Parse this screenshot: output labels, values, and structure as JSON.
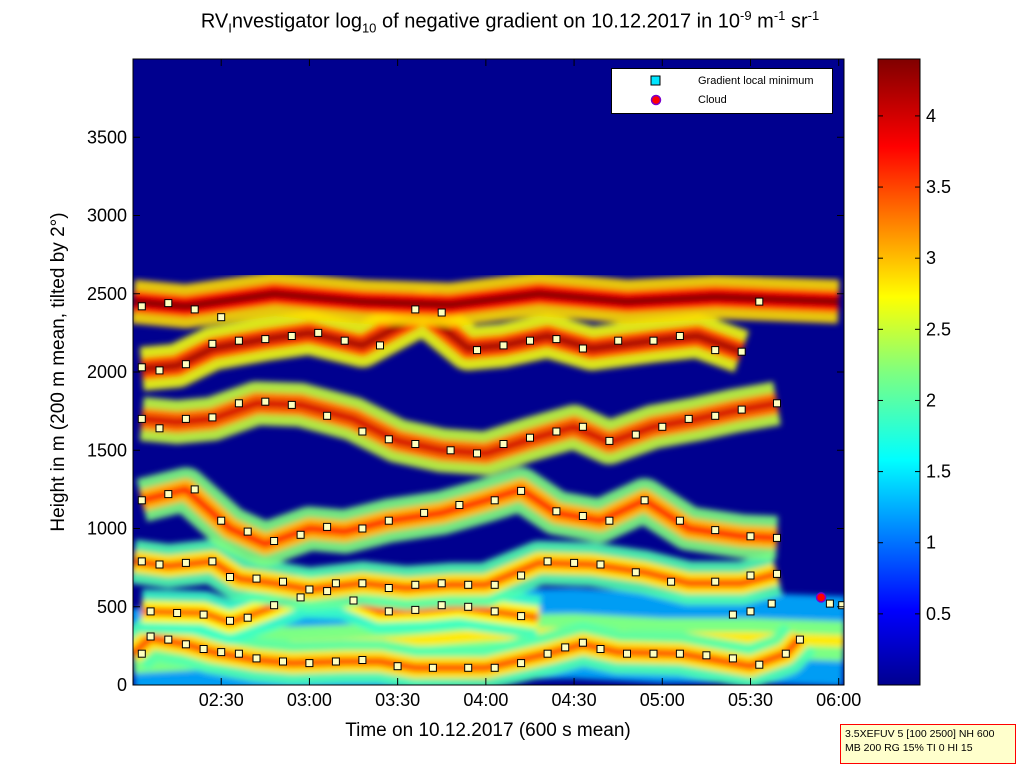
{
  "title": {
    "prefix": "RV",
    "sub1": "I",
    "mid": "nvestigator log",
    "sub2": "10",
    "after": " of negative gradient on 10.12.2017 in 10",
    "sup1": "-9",
    "unit_m": " m",
    "sup2": "-1",
    "unit_sr": " sr",
    "sup3": "-1"
  },
  "legend": {
    "items": [
      {
        "label": "Gradient local minimum",
        "marker": "square",
        "color": "#00e5ff"
      },
      {
        "label": "Cloud",
        "marker": "circle",
        "color": "#ff0000"
      }
    ]
  },
  "info_box": {
    "line1": "3.5XEFUV 5 [100 2500] NH 600",
    "line2": "MB 200 RG 15% TI 0 HI 15"
  },
  "colors": {
    "background_field": "#00008f",
    "border_info": "#ff0000",
    "info_fill": "#ffffcc"
  },
  "chart_data": {
    "type": "heatmap",
    "xlabel": "Time on 10.12.2017 (600 s mean)",
    "ylabel": "Height in m (200 m mean, tilted by 2°)",
    "x_ticks": [
      "02:30",
      "03:00",
      "03:30",
      "04:00",
      "04:30",
      "05:00",
      "05:30",
      "06:00"
    ],
    "x_tick_hours": [
      2.5,
      3.0,
      3.5,
      4.0,
      4.5,
      5.0,
      5.5,
      6.0
    ],
    "xlim_hours": [
      2.0,
      6.03
    ],
    "y_ticks": [
      "0",
      "500",
      "1000",
      "1500",
      "2000",
      "2500",
      "3000",
      "3500"
    ],
    "y_tick_values": [
      0,
      500,
      1000,
      1500,
      2000,
      2500,
      3000,
      3500
    ],
    "ylim": [
      0,
      4000
    ],
    "colorbar": {
      "colormap": "jet",
      "ticks": [
        "0.5",
        "1",
        "1.5",
        "2",
        "2.5",
        "3",
        "3.5",
        "4"
      ],
      "tick_values": [
        0.5,
        1,
        1.5,
        2,
        2.5,
        3,
        3.5,
        4
      ],
      "range": [
        0,
        4.4
      ]
    },
    "layers": [
      {
        "name": "surface-layer",
        "value": 2.4,
        "path": [
          [
            2.0,
            200
          ],
          [
            2.5,
            230
          ],
          [
            3.0,
            250
          ],
          [
            3.5,
            270
          ],
          [
            4.0,
            320
          ],
          [
            4.5,
            330
          ],
          [
            5.0,
            300
          ],
          [
            5.5,
            300
          ],
          [
            6.03,
            280
          ]
        ]
      },
      {
        "name": "gradient-minimum-track-1",
        "value": 3.1,
        "path": [
          [
            2.0,
            200
          ],
          [
            2.1,
            300
          ],
          [
            2.3,
            260
          ],
          [
            2.45,
            210
          ],
          [
            2.7,
            160
          ],
          [
            2.9,
            140
          ],
          [
            3.2,
            150
          ],
          [
            3.4,
            150
          ],
          [
            3.6,
            110
          ],
          [
            4.0,
            110
          ],
          [
            4.35,
            200
          ],
          [
            4.55,
            260
          ],
          [
            4.75,
            210
          ],
          [
            5.1,
            200
          ],
          [
            5.5,
            120
          ],
          [
            5.7,
            200
          ],
          [
            5.78,
            300
          ]
        ]
      },
      {
        "name": "gradient-minimum-track-2",
        "value": 3.0,
        "path": [
          [
            2.05,
            470
          ],
          [
            2.4,
            460
          ],
          [
            2.55,
            400
          ],
          [
            2.75,
            480
          ],
          [
            2.95,
            570
          ],
          [
            3.2,
            560
          ],
          [
            3.4,
            470
          ],
          [
            3.65,
            480
          ],
          [
            3.85,
            500
          ],
          [
            4.1,
            460
          ],
          [
            4.3,
            430
          ]
        ]
      },
      {
        "name": "gradient-minimum-track-3",
        "value": 3.1,
        "path": [
          [
            2.0,
            790
          ],
          [
            2.2,
            760
          ],
          [
            2.45,
            790
          ],
          [
            2.6,
            680
          ],
          [
            2.8,
            650
          ],
          [
            3.0,
            610
          ],
          [
            3.3,
            650
          ],
          [
            3.55,
            620
          ],
          [
            3.8,
            640
          ],
          [
            4.0,
            640
          ],
          [
            4.3,
            780
          ],
          [
            4.6,
            770
          ],
          [
            4.9,
            720
          ],
          [
            5.15,
            650
          ],
          [
            5.45,
            650
          ],
          [
            5.65,
            710
          ]
        ]
      },
      {
        "name": "gradient-minimum-track-4",
        "value": 3.3,
        "path": [
          [
            2.05,
            1180
          ],
          [
            2.3,
            1250
          ],
          [
            2.55,
            1000
          ],
          [
            2.75,
            900
          ],
          [
            3.0,
            1000
          ],
          [
            3.2,
            980
          ],
          [
            3.45,
            1050
          ],
          [
            3.75,
            1100
          ],
          [
            4.0,
            1180
          ],
          [
            4.2,
            1250
          ],
          [
            4.4,
            1100
          ],
          [
            4.65,
            1050
          ],
          [
            4.9,
            1180
          ],
          [
            5.15,
            1000
          ],
          [
            5.45,
            950
          ],
          [
            5.65,
            940
          ]
        ]
      },
      {
        "name": "gradient-minimum-track-5",
        "value": 3.6,
        "path": [
          [
            2.05,
            1700
          ],
          [
            2.25,
            1680
          ],
          [
            2.45,
            1700
          ],
          [
            2.7,
            1800
          ],
          [
            2.95,
            1790
          ],
          [
            3.25,
            1700
          ],
          [
            3.5,
            1560
          ],
          [
            3.75,
            1500
          ],
          [
            4.0,
            1480
          ],
          [
            4.25,
            1570
          ],
          [
            4.5,
            1650
          ],
          [
            4.7,
            1550
          ],
          [
            4.95,
            1650
          ],
          [
            5.2,
            1700
          ],
          [
            5.4,
            1750
          ],
          [
            5.65,
            1800
          ]
        ]
      },
      {
        "name": "gradient-minimum-track-6",
        "value": 3.8,
        "path": [
          [
            2.05,
            2020
          ],
          [
            2.25,
            2040
          ],
          [
            2.45,
            2150
          ],
          [
            2.75,
            2210
          ],
          [
            3.0,
            2250
          ],
          [
            3.3,
            2170
          ],
          [
            3.65,
            2380
          ],
          [
            3.9,
            2150
          ],
          [
            4.1,
            2170
          ],
          [
            4.35,
            2230
          ],
          [
            4.6,
            2150
          ],
          [
            4.95,
            2200
          ],
          [
            5.2,
            2230
          ],
          [
            5.45,
            2130
          ]
        ]
      },
      {
        "name": "upper-layer",
        "value": 4.0,
        "path": [
          [
            2.0,
            2450
          ],
          [
            2.3,
            2420
          ],
          [
            2.8,
            2500
          ],
          [
            3.3,
            2450
          ],
          [
            3.8,
            2430
          ],
          [
            4.3,
            2500
          ],
          [
            4.8,
            2450
          ],
          [
            5.3,
            2480
          ],
          [
            6.0,
            2450
          ]
        ]
      }
    ],
    "gradient_minima": [
      [
        2.05,
        200
      ],
      [
        2.1,
        310
      ],
      [
        2.2,
        290
      ],
      [
        2.3,
        260
      ],
      [
        2.4,
        230
      ],
      [
        2.5,
        210
      ],
      [
        2.6,
        200
      ],
      [
        2.7,
        170
      ],
      [
        2.85,
        150
      ],
      [
        3.0,
        140
      ],
      [
        3.15,
        150
      ],
      [
        3.3,
        160
      ],
      [
        3.5,
        120
      ],
      [
        3.7,
        110
      ],
      [
        3.9,
        110
      ],
      [
        4.05,
        110
      ],
      [
        4.2,
        140
      ],
      [
        4.35,
        200
      ],
      [
        4.45,
        240
      ],
      [
        4.55,
        270
      ],
      [
        4.65,
        230
      ],
      [
        4.8,
        200
      ],
      [
        4.95,
        200
      ],
      [
        5.1,
        200
      ],
      [
        5.25,
        190
      ],
      [
        5.4,
        170
      ],
      [
        5.55,
        130
      ],
      [
        5.7,
        200
      ],
      [
        5.78,
        290
      ],
      [
        2.1,
        470
      ],
      [
        2.25,
        460
      ],
      [
        2.4,
        450
      ],
      [
        2.55,
        410
      ],
      [
        2.65,
        430
      ],
      [
        2.8,
        510
      ],
      [
        2.95,
        560
      ],
      [
        3.1,
        600
      ],
      [
        3.25,
        540
      ],
      [
        3.45,
        470
      ],
      [
        3.6,
        480
      ],
      [
        3.75,
        510
      ],
      [
        3.9,
        500
      ],
      [
        4.05,
        470
      ],
      [
        4.2,
        440
      ],
      [
        5.4,
        450
      ],
      [
        5.5,
        470
      ],
      [
        5.62,
        520
      ],
      [
        5.95,
        520
      ],
      [
        6.02,
        510
      ],
      [
        2.05,
        790
      ],
      [
        2.15,
        770
      ],
      [
        2.3,
        780
      ],
      [
        2.45,
        790
      ],
      [
        2.55,
        690
      ],
      [
        2.7,
        680
      ],
      [
        2.85,
        660
      ],
      [
        3.0,
        610
      ],
      [
        3.15,
        650
      ],
      [
        3.3,
        650
      ],
      [
        3.45,
        620
      ],
      [
        3.6,
        640
      ],
      [
        3.75,
        650
      ],
      [
        3.9,
        640
      ],
      [
        4.05,
        640
      ],
      [
        4.2,
        700
      ],
      [
        4.35,
        790
      ],
      [
        4.5,
        780
      ],
      [
        4.65,
        770
      ],
      [
        4.85,
        720
      ],
      [
        5.05,
        660
      ],
      [
        5.3,
        660
      ],
      [
        5.5,
        700
      ],
      [
        5.65,
        710
      ],
      [
        2.05,
        1180
      ],
      [
        2.2,
        1220
      ],
      [
        2.35,
        1250
      ],
      [
        2.5,
        1050
      ],
      [
        2.65,
        980
      ],
      [
        2.8,
        920
      ],
      [
        2.95,
        960
      ],
      [
        3.1,
        1010
      ],
      [
        3.3,
        1000
      ],
      [
        3.45,
        1050
      ],
      [
        3.65,
        1100
      ],
      [
        3.85,
        1150
      ],
      [
        4.05,
        1180
      ],
      [
        4.2,
        1240
      ],
      [
        4.4,
        1110
      ],
      [
        4.55,
        1080
      ],
      [
        4.7,
        1050
      ],
      [
        4.9,
        1180
      ],
      [
        5.1,
        1050
      ],
      [
        5.3,
        990
      ],
      [
        5.5,
        950
      ],
      [
        5.65,
        940
      ],
      [
        2.05,
        1700
      ],
      [
        2.15,
        1640
      ],
      [
        2.3,
        1700
      ],
      [
        2.45,
        1710
      ],
      [
        2.6,
        1800
      ],
      [
        2.75,
        1810
      ],
      [
        2.9,
        1790
      ],
      [
        3.1,
        1720
      ],
      [
        3.3,
        1620
      ],
      [
        3.45,
        1570
      ],
      [
        3.6,
        1540
      ],
      [
        3.8,
        1500
      ],
      [
        3.95,
        1480
      ],
      [
        4.1,
        1540
      ],
      [
        4.25,
        1580
      ],
      [
        4.4,
        1620
      ],
      [
        4.55,
        1650
      ],
      [
        4.7,
        1560
      ],
      [
        4.85,
        1600
      ],
      [
        5.0,
        1650
      ],
      [
        5.15,
        1700
      ],
      [
        5.3,
        1720
      ],
      [
        5.45,
        1760
      ],
      [
        5.65,
        1800
      ],
      [
        2.05,
        2030
      ],
      [
        2.15,
        2010
      ],
      [
        2.3,
        2050
      ],
      [
        2.45,
        2180
      ],
      [
        2.6,
        2200
      ],
      [
        2.75,
        2210
      ],
      [
        2.9,
        2230
      ],
      [
        3.05,
        2250
      ],
      [
        3.2,
        2200
      ],
      [
        3.4,
        2170
      ],
      [
        3.6,
        2400
      ],
      [
        3.75,
        2380
      ],
      [
        3.95,
        2140
      ],
      [
        4.1,
        2170
      ],
      [
        4.25,
        2200
      ],
      [
        4.4,
        2210
      ],
      [
        4.55,
        2150
      ],
      [
        4.75,
        2200
      ],
      [
        4.95,
        2200
      ],
      [
        5.1,
        2230
      ],
      [
        5.3,
        2140
      ],
      [
        5.45,
        2130
      ],
      [
        2.05,
        2420
      ],
      [
        2.2,
        2440
      ],
      [
        2.35,
        2400
      ],
      [
        2.5,
        2350
      ],
      [
        5.55,
        2450
      ]
    ],
    "clouds": [
      [
        5.9,
        560
      ]
    ]
  }
}
